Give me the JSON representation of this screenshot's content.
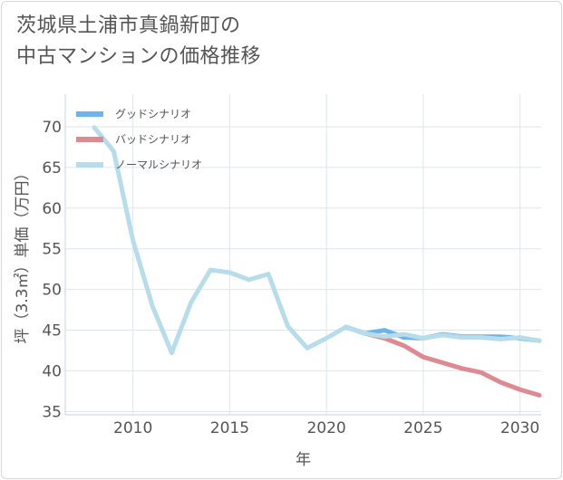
{
  "title_line1": "茨城県土浦市真鍋新町の",
  "title_line2": "中古マンションの価格推移",
  "chart_data": {
    "type": "line",
    "title": "茨城県土浦市真鍋新町の中古マンションの価格推移",
    "xlabel": "年",
    "ylabel": "坪（3.3㎡）単価（万円）",
    "xlim": [
      2006.5,
      2031.1
    ],
    "ylim": [
      34.6,
      74
    ],
    "xticks": [
      2010,
      2015,
      2020,
      2025,
      2030
    ],
    "yticks": [
      35,
      40,
      45,
      50,
      55,
      60,
      65,
      70
    ],
    "grid": true,
    "legend_position": "top-left",
    "series": [
      {
        "name": "グッドシナリオ",
        "color": "#6cb4ea",
        "x": [
          2021,
          2022,
          2023,
          2024,
          2025,
          2026,
          2027,
          2028,
          2029,
          2030,
          2031
        ],
        "y": [
          45.4,
          44.6,
          45.0,
          44.1,
          44.0,
          44.5,
          44.2,
          44.2,
          44.2,
          44.0,
          43.7
        ]
      },
      {
        "name": "バッドシナリオ",
        "color": "#de8a92",
        "x": [
          2021,
          2022,
          2023,
          2024,
          2025,
          2026,
          2027,
          2028,
          2029,
          2030,
          2031
        ],
        "y": [
          45.4,
          44.6,
          44.0,
          43.1,
          41.7,
          41.0,
          40.3,
          39.8,
          38.6,
          37.7,
          37.0
        ]
      },
      {
        "name": "ノーマルシナリオ",
        "color": "#b7dcea",
        "x": [
          2008,
          2009,
          2010,
          2011,
          2012,
          2013,
          2014,
          2015,
          2016,
          2017,
          2018,
          2019,
          2020,
          2021,
          2022,
          2023,
          2024,
          2025,
          2026,
          2027,
          2028,
          2029,
          2030,
          2031
        ],
        "y": [
          69.9,
          67.0,
          56.0,
          48.0,
          42.2,
          48.4,
          52.4,
          52.1,
          51.2,
          51.9,
          45.5,
          42.8,
          44.0,
          45.4,
          44.6,
          44.2,
          44.5,
          44.0,
          44.4,
          44.1,
          44.1,
          43.9,
          44.1,
          43.7
        ]
      }
    ]
  }
}
